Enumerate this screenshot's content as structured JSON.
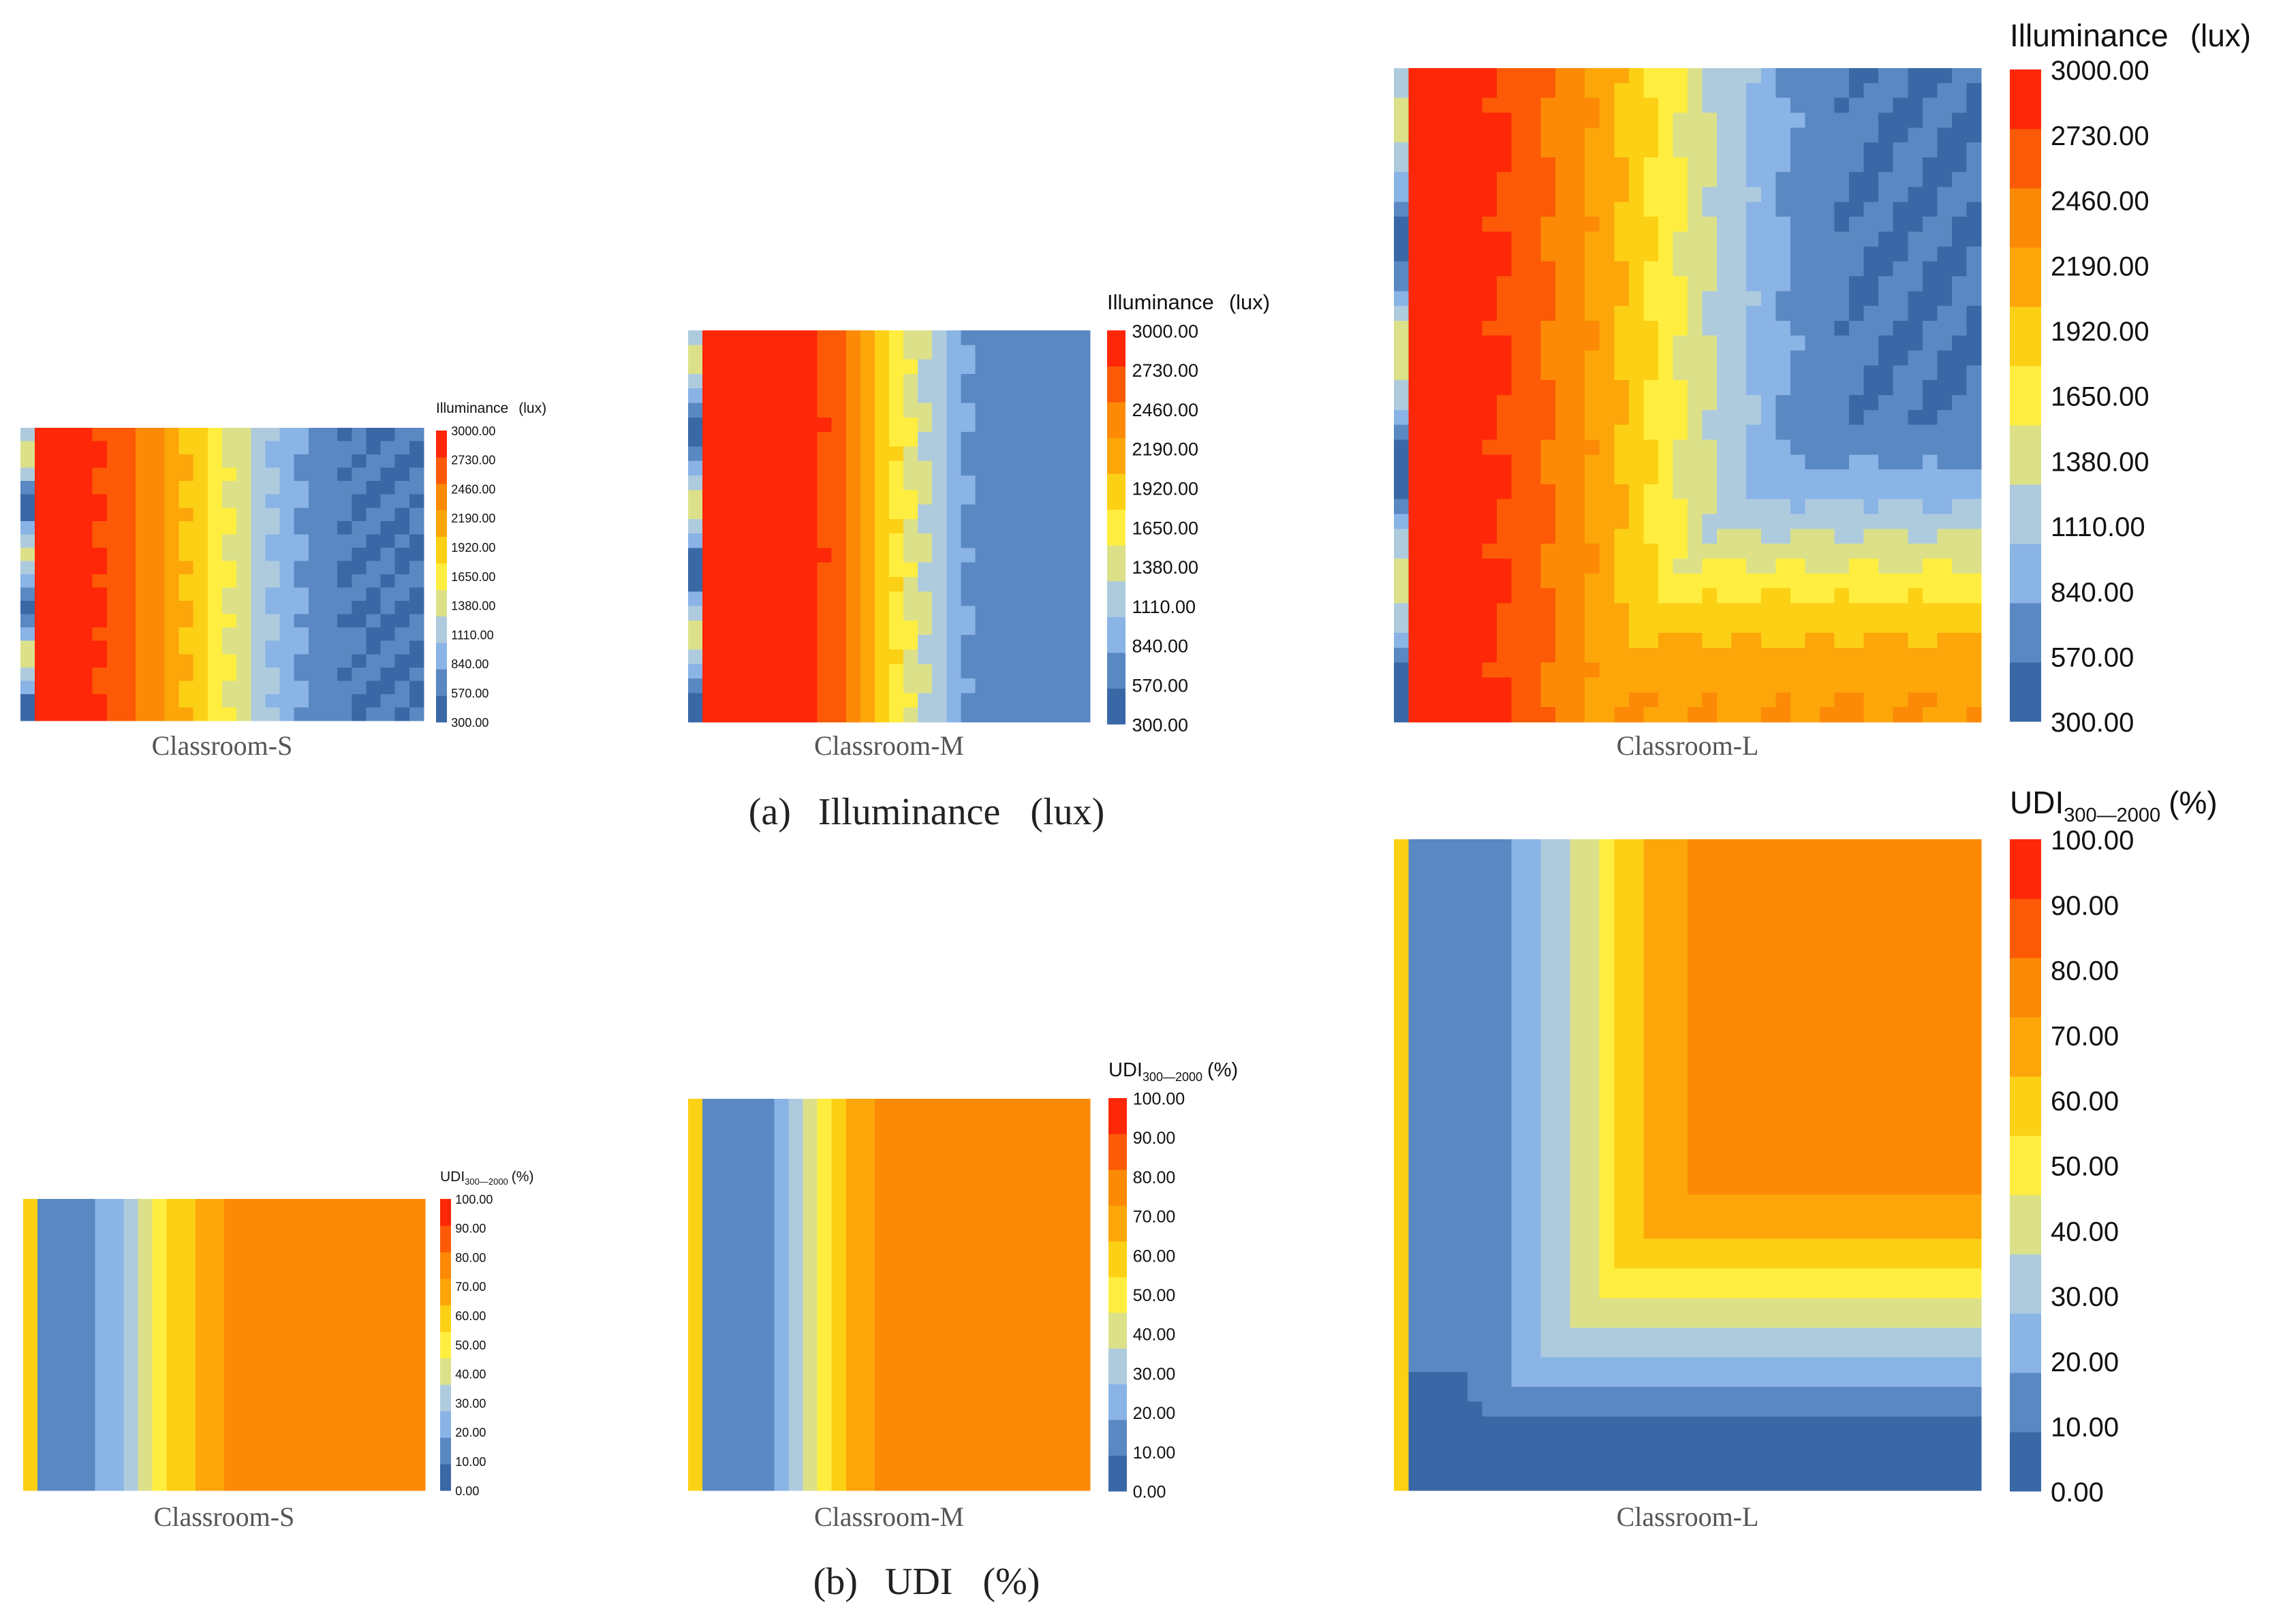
{
  "sections": {
    "a": {
      "label": "(a)",
      "title": "Illuminance",
      "unit": "(lux)"
    },
    "b": {
      "label": "(b)",
      "title": "UDI",
      "unit": "(%)"
    }
  },
  "chart_data": [
    {
      "type": "heatmap",
      "section": "a",
      "name": "Classroom-S",
      "legend_title": "Illuminance",
      "legend_unit": "(lux)",
      "ticks": [
        "300.00",
        "570.00",
        "840.00",
        "1110.00",
        "1380.00",
        "1650.00",
        "1920.00",
        "2190.00",
        "2460.00",
        "2730.00",
        "3000.00"
      ],
      "xlabel": "Classroom-S",
      "colors": [
        "#3a68a6",
        "#5a88c2",
        "#8ab3e6",
        "#aecbde",
        "#dce189",
        "#ffee3f",
        "#fcd015",
        "#fca60a",
        "#fc8a06",
        "#fc5a06",
        "#fe2708"
      ]
    },
    {
      "type": "heatmap",
      "section": "a",
      "name": "Classroom-M",
      "legend_title": "Illuminance",
      "legend_unit": "(lux)",
      "ticks": [
        "300.00",
        "570.00",
        "840.00",
        "1110.00",
        "1380.00",
        "1650.00",
        "1920.00",
        "2190.00",
        "2460.00",
        "2730.00",
        "3000.00"
      ],
      "xlabel": "Classroom-M",
      "colors": [
        "#3a68a6",
        "#5a88c2",
        "#8ab3e6",
        "#aecbde",
        "#dce189",
        "#ffee3f",
        "#fcd015",
        "#fca60a",
        "#fc8a06",
        "#fc5a06",
        "#fe2708"
      ]
    },
    {
      "type": "heatmap",
      "section": "a",
      "name": "Classroom-L",
      "legend_title": "Illuminance",
      "legend_unit": "(lux)",
      "ticks": [
        "300.00",
        "570.00",
        "840.00",
        "1110.00",
        "1380.00",
        "1650.00",
        "1920.00",
        "2190.00",
        "2460.00",
        "2730.00",
        "3000.00"
      ],
      "xlabel": "Classroom-L",
      "colors": [
        "#3a68a6",
        "#5a88c2",
        "#8ab3e6",
        "#aecbde",
        "#dce189",
        "#ffee3f",
        "#fcd015",
        "#fca60a",
        "#fc8a06",
        "#fc5a06",
        "#fe2708"
      ]
    },
    {
      "type": "heatmap",
      "section": "b",
      "name": "Classroom-S",
      "legend_title": "UDI",
      "legend_sub": "300—2000",
      "legend_unit": "(%)",
      "ticks": [
        "0.00",
        "10.00",
        "20.00",
        "30.00",
        "40.00",
        "50.00",
        "60.00",
        "70.00",
        "80.00",
        "90.00",
        "100.00"
      ],
      "xlabel": "Classroom-S",
      "colors": [
        "#3a68a6",
        "#5a88c2",
        "#8ab3e6",
        "#aecbde",
        "#dce189",
        "#ffee3f",
        "#fcd015",
        "#fca60a",
        "#fc8a06",
        "#fc5a06",
        "#fe2708"
      ]
    },
    {
      "type": "heatmap",
      "section": "b",
      "name": "Classroom-M",
      "legend_title": "UDI",
      "legend_sub": "300—2000",
      "legend_unit": "(%)",
      "ticks": [
        "0.00",
        "10.00",
        "20.00",
        "30.00",
        "40.00",
        "50.00",
        "60.00",
        "70.00",
        "80.00",
        "90.00",
        "100.00"
      ],
      "xlabel": "Classroom-M",
      "colors": [
        "#3a68a6",
        "#5a88c2",
        "#8ab3e6",
        "#aecbde",
        "#dce189",
        "#ffee3f",
        "#fcd015",
        "#fca60a",
        "#fc8a06",
        "#fc5a06",
        "#fe2708"
      ]
    },
    {
      "type": "heatmap",
      "section": "b",
      "name": "Classroom-L",
      "legend_title": "UDI",
      "legend_sub": "300—2000",
      "legend_unit": "(%)",
      "ticks": [
        "0.00",
        "10.00",
        "20.00",
        "30.00",
        "40.00",
        "50.00",
        "60.00",
        "70.00",
        "80.00",
        "90.00",
        "100.00"
      ],
      "xlabel": "Classroom-L",
      "colors": [
        "#3a68a6",
        "#5a88c2",
        "#8ab3e6",
        "#aecbde",
        "#dce189",
        "#ffee3f",
        "#fcd015",
        "#fca60a",
        "#fc8a06",
        "#fc5a06",
        "#fe2708"
      ]
    }
  ]
}
